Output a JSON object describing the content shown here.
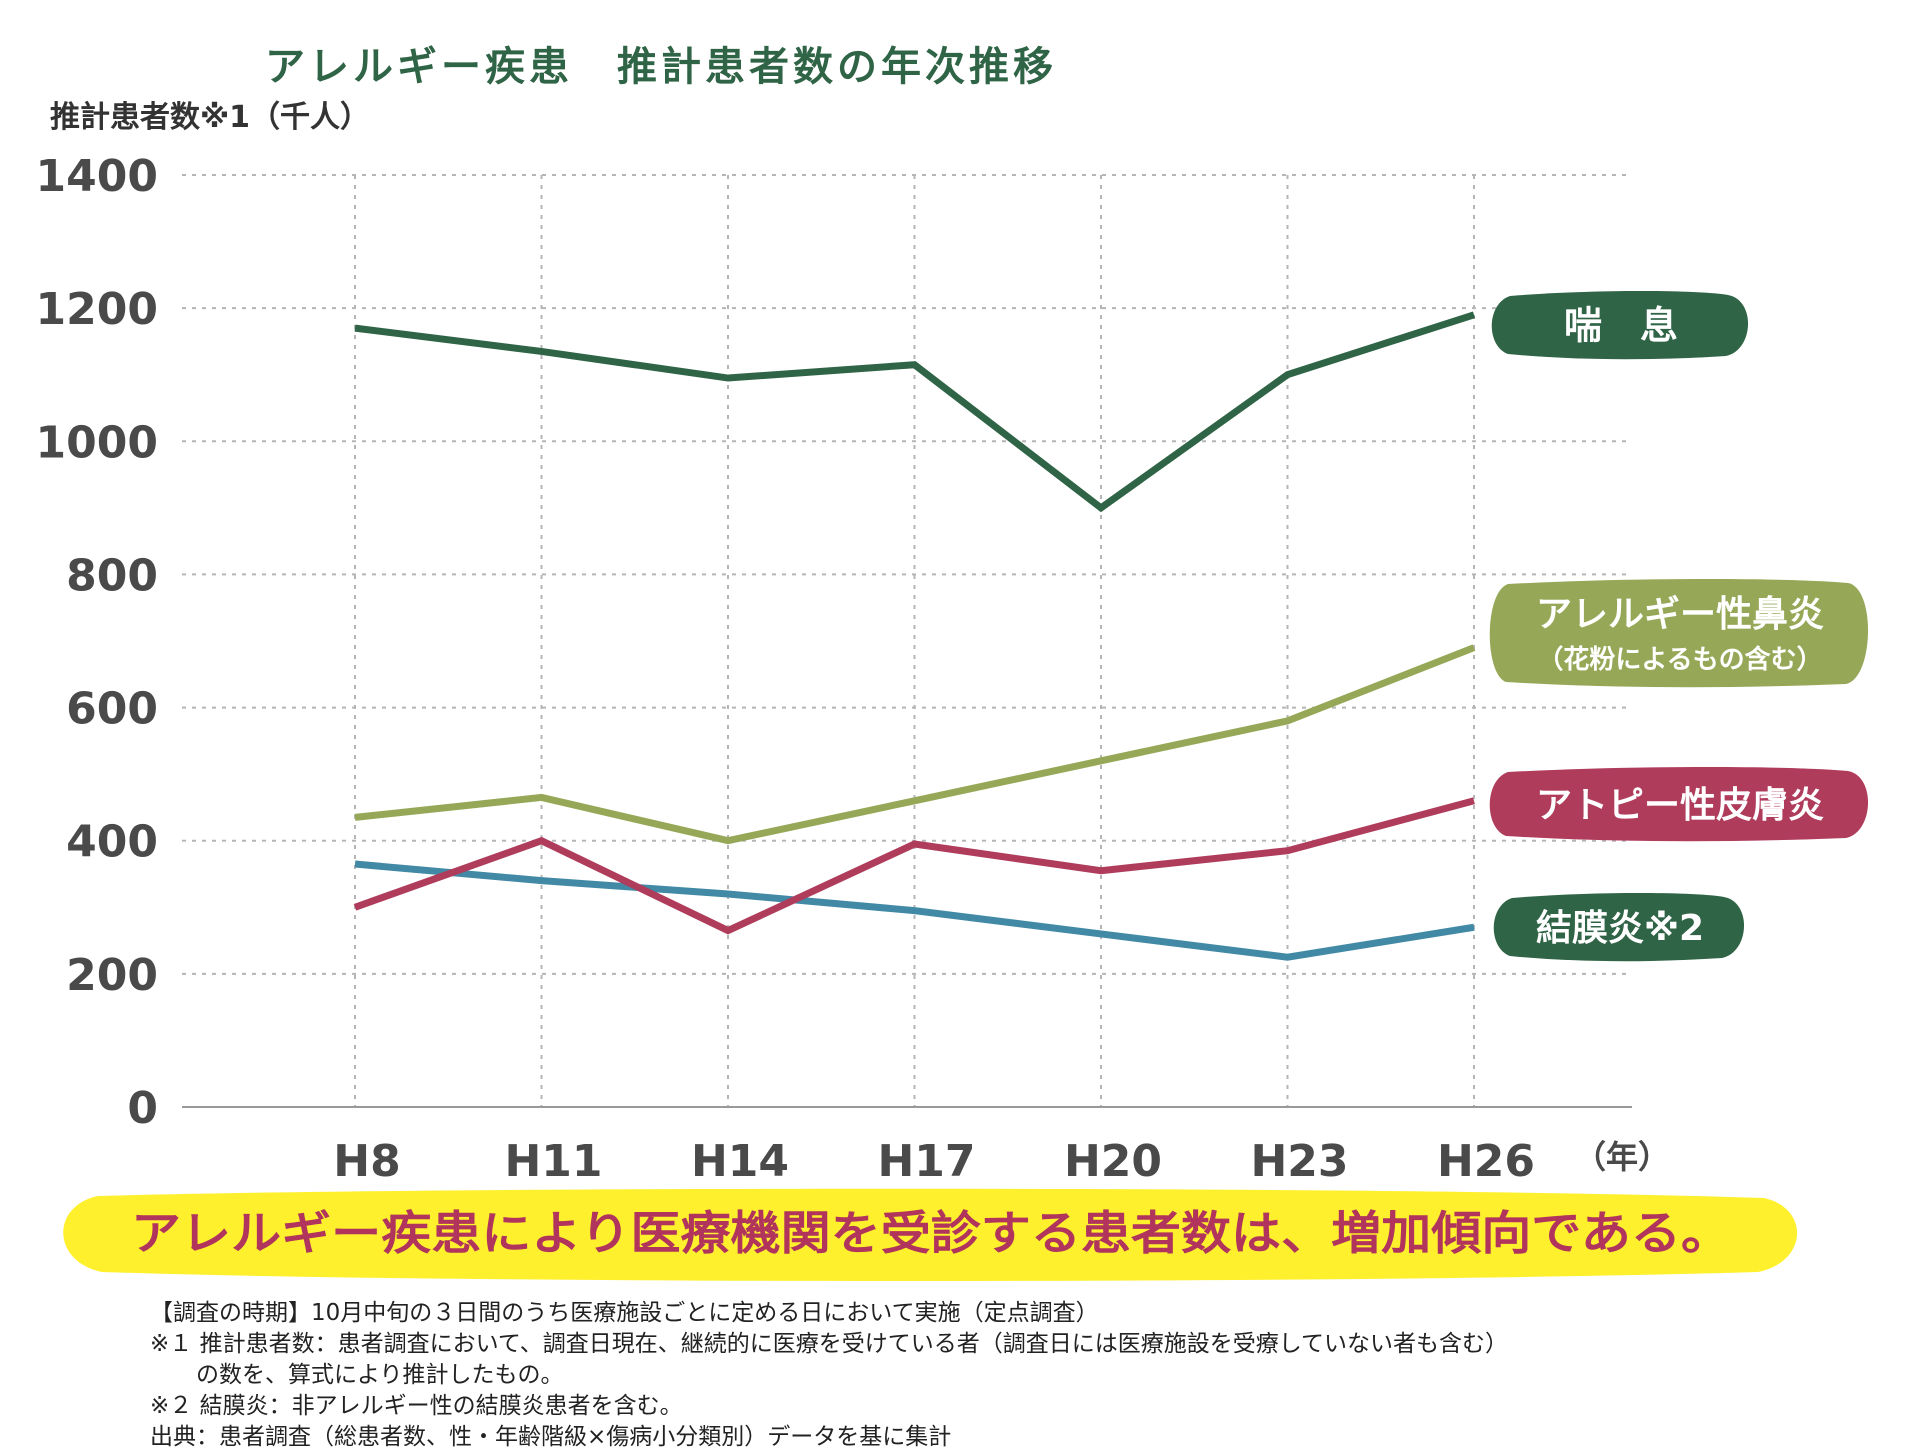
{
  "chart_data": {
    "type": "line",
    "title": "アレルギー疾患　推計患者数の年次推移",
    "ylabel": "推計患者数※1（千人）",
    "xunit": "（年）",
    "ylim": [
      0,
      1400
    ],
    "yticks": [
      0,
      200,
      400,
      600,
      800,
      1000,
      1200,
      1400
    ],
    "categories": [
      "H8",
      "H11",
      "H14",
      "H17",
      "H20",
      "H23",
      "H26"
    ],
    "grid": true,
    "series": [
      {
        "name": "喘　息",
        "color": "#2f6446",
        "values": [
          1170,
          1135,
          1095,
          1115,
          900,
          1100,
          1190
        ]
      },
      {
        "name": "アレルギー性鼻炎",
        "subname": "（花粉によるもの含む）",
        "color": "#96a857",
        "values": [
          435,
          465,
          400,
          460,
          520,
          580,
          690
        ]
      },
      {
        "name": "アトピー性皮膚炎",
        "color": "#b03c5c",
        "values": [
          300,
          400,
          265,
          395,
          355,
          385,
          460
        ]
      },
      {
        "name": "結膜炎※2",
        "color": "#4289a6",
        "label_color": "#2f6446",
        "values": [
          365,
          340,
          320,
          295,
          260,
          225,
          270
        ]
      }
    ]
  },
  "banner": {
    "text": "アレルギー疾患により医療機関を受診する患者数は、増加傾向である。",
    "bg_color": "#fff02e"
  },
  "notes": [
    "【調査の時期】10月中旬の３日間のうち医療施設ごとに定める日において実施（定点調査）",
    "※１ 推計患者数：患者調査において、調査日現在、継続的に医療を受けている者（調査日には医療施設を受療していない者も含む）",
    "　　の数を、算式により推計したもの。",
    "※２ 結膜炎：非アレルギー性の結膜炎患者を含む。",
    "出典：患者調査（総患者数、性・年齢階級×傷病小分類別）データを基に集計"
  ]
}
